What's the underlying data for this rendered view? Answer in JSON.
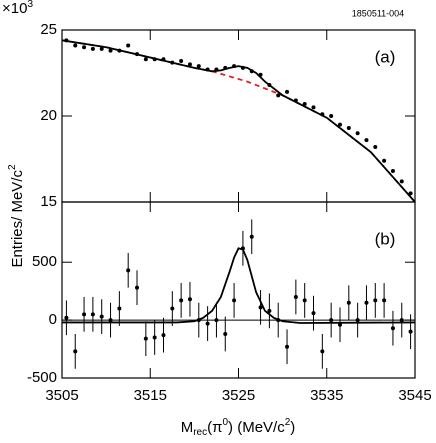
{
  "figure_id": "1850511-004",
  "ylabel": [
    "Entries/ MeV/c",
    "2"
  ],
  "xlabel": [
    "M",
    "rec",
    "(π",
    "0",
    ") (MeV/c",
    "2",
    ")"
  ],
  "xlim": [
    3505,
    3545
  ],
  "xticks": [
    3505,
    3515,
    3525,
    3535,
    3545
  ],
  "chart_data": [
    {
      "type": "scatter",
      "panel_label": "(a)",
      "multiplier": [
        "×10",
        "3"
      ],
      "ylim": [
        15,
        25
      ],
      "yticks": [
        15,
        20,
        25
      ],
      "points": {
        "color": "#000000",
        "x": [
          3505.5,
          3506.5,
          3507.5,
          3508.5,
          3509.5,
          3510.5,
          3511.5,
          3512.5,
          3513.5,
          3514.5,
          3515.5,
          3516.5,
          3517.5,
          3518.5,
          3519.5,
          3520.5,
          3521.5,
          3522.5,
          3523.5,
          3524.5,
          3525.5,
          3526.5,
          3527.5,
          3528.5,
          3529.5,
          3530.5,
          3531.5,
          3532.5,
          3533.5,
          3534.5,
          3535.5,
          3536.5,
          3537.5,
          3538.5,
          3539.5,
          3540.5,
          3541.5,
          3542.5,
          3543.5,
          3544.5
        ],
        "values": [
          24.4,
          24.1,
          24.0,
          23.9,
          23.9,
          23.8,
          23.8,
          24.1,
          23.6,
          23.3,
          23.3,
          23.3,
          23.1,
          23.2,
          23.0,
          22.9,
          22.7,
          22.7,
          22.8,
          22.9,
          22.8,
          22.6,
          22.4,
          21.8,
          21.2,
          21.4,
          20.9,
          20.7,
          20.5,
          20.1,
          20.0,
          19.5,
          19.3,
          19.0,
          18.6,
          18.2,
          17.4,
          16.8,
          16.2,
          15.5
        ]
      },
      "background": {
        "color": "#e02020",
        "dashed": true,
        "x": [
          3505,
          3510,
          3515,
          3520,
          3522,
          3523,
          3524,
          3525,
          3526,
          3527,
          3528,
          3530,
          3535,
          3540,
          3545
        ],
        "values": [
          24.4,
          24.0,
          23.4,
          22.8,
          22.6,
          22.45,
          22.3,
          22.15,
          22.0,
          21.8,
          21.6,
          21.2,
          19.9,
          17.9,
          15.0
        ]
      },
      "fit": {
        "color": "#000000",
        "x": [
          3505,
          3510,
          3515,
          3520,
          3522,
          3523,
          3524,
          3525,
          3526,
          3527,
          3528,
          3530,
          3535,
          3540,
          3545
        ],
        "values": [
          24.4,
          24.0,
          23.4,
          22.8,
          22.6,
          22.65,
          22.8,
          22.9,
          22.8,
          22.5,
          22.0,
          21.2,
          19.9,
          17.9,
          15.0
        ]
      }
    },
    {
      "type": "errorbar",
      "panel_label": "(b)",
      "ylim": [
        -500,
        1020
      ],
      "yticks": [
        -500,
        0,
        500
      ],
      "zero_line": true,
      "points": {
        "color": "#000000",
        "x": [
          3505.5,
          3506.5,
          3507.5,
          3508.5,
          3509.5,
          3510.5,
          3511.5,
          3512.5,
          3513.5,
          3514.5,
          3515.5,
          3516.5,
          3517.5,
          3518.5,
          3519.5,
          3520.5,
          3521.5,
          3522.5,
          3523.5,
          3524.5,
          3525.5,
          3526.5,
          3527.5,
          3528.5,
          3529.5,
          3530.5,
          3531.5,
          3532.5,
          3533.5,
          3534.5,
          3535.5,
          3536.5,
          3537.5,
          3538.5,
          3539.5,
          3540.5,
          3541.5,
          3542.5,
          3543.5,
          3544.5
        ],
        "values": [
          20,
          -270,
          50,
          50,
          30,
          0,
          100,
          430,
          280,
          -160,
          -150,
          -130,
          100,
          170,
          180,
          0,
          -30,
          0,
          -120,
          170,
          620,
          720,
          110,
          80,
          0,
          -230,
          200,
          170,
          60,
          -270,
          0,
          -40,
          150,
          0,
          150,
          170,
          170,
          -70,
          0,
          -100
        ],
        "errors": [
          150,
          150,
          150,
          150,
          150,
          150,
          150,
          150,
          150,
          150,
          150,
          150,
          150,
          150,
          150,
          150,
          150,
          150,
          150,
          150,
          150,
          150,
          150,
          150,
          150,
          150,
          150,
          150,
          150,
          150,
          150,
          150,
          150,
          150,
          150,
          150,
          150,
          150,
          150,
          150
        ]
      },
      "fit": {
        "color": "#000000",
        "x": [
          3505,
          3518,
          3520,
          3521,
          3522,
          3523,
          3524,
          3524.5,
          3525,
          3525.5,
          3526,
          3526.5,
          3527,
          3528,
          3529,
          3530,
          3532,
          3545
        ],
        "values": [
          -20,
          -20,
          -10,
          20,
          80,
          200,
          420,
          540,
          620,
          610,
          520,
          380,
          240,
          80,
          20,
          -10,
          -25,
          -20
        ]
      }
    }
  ]
}
